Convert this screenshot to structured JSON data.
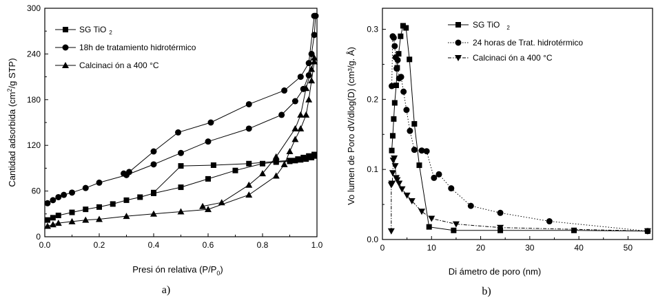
{
  "chart_data": [
    {
      "type": "line",
      "caption": "a)",
      "xlabel": "Presi ón relativa (P/P",
      "xlabel_sub": "0",
      "xlabel_close": ")",
      "ylabel": "Cantidad adsorbida (cm",
      "ylabel_sup": "2",
      "ylabel_close": "/g STP)",
      "xlim": [
        0,
        1.0
      ],
      "ylim": [
        0,
        300
      ],
      "xticks": [
        "0.0",
        "0.2",
        "0.4",
        "0.6",
        "0.8",
        "1.0"
      ],
      "yticks": [
        "0",
        "60",
        "120",
        "180",
        "240",
        "300"
      ],
      "grid": false,
      "legend_position": "top-left",
      "series": [
        {
          "name": "SG TiO",
          "name_sub": "2",
          "marker": "square",
          "x": [
            0.01,
            0.03,
            0.05,
            0.1,
            0.15,
            0.2,
            0.25,
            0.3,
            0.35,
            0.4,
            0.5,
            0.6,
            0.7,
            0.8,
            0.85,
            0.9,
            0.92,
            0.94,
            0.96,
            0.98,
            0.99,
            0.99,
            0.97,
            0.95,
            0.93,
            0.9,
            0.85,
            0.75,
            0.62,
            0.5,
            0.4
          ],
          "y": [
            22,
            25,
            28,
            32,
            36,
            39,
            43,
            48,
            52,
            57,
            65,
            76,
            87,
            96,
            98,
            99,
            100,
            101,
            102,
            104,
            106,
            108,
            106,
            104,
            102,
            100,
            99,
            96,
            94,
            93,
            58
          ]
        },
        {
          "name": "18h de tratamiento hidrotérmico",
          "marker": "circle",
          "x": [
            0.01,
            0.03,
            0.05,
            0.07,
            0.1,
            0.15,
            0.2,
            0.3,
            0.4,
            0.5,
            0.6,
            0.75,
            0.87,
            0.92,
            0.95,
            0.97,
            0.98,
            0.99,
            0.995,
            0.99,
            0.97,
            0.94,
            0.88,
            0.75,
            0.61,
            0.49,
            0.4,
            0.31,
            0.29
          ],
          "y": [
            44,
            48,
            52,
            55,
            58,
            64,
            71,
            81,
            95,
            110,
            125,
            142,
            160,
            178,
            194,
            212,
            240,
            265,
            290,
            290,
            228,
            210,
            192,
            174,
            150,
            137,
            112,
            85,
            83
          ]
        },
        {
          "name": "Calcinaci ón a 400 °C",
          "marker": "triangle",
          "x": [
            0.01,
            0.03,
            0.05,
            0.1,
            0.15,
            0.2,
            0.3,
            0.4,
            0.5,
            0.6,
            0.75,
            0.85,
            0.88,
            0.9,
            0.92,
            0.94,
            0.96,
            0.97,
            0.98,
            0.99,
            0.99,
            0.98,
            0.96,
            0.94,
            0.92,
            0.85,
            0.8,
            0.75,
            0.65,
            0.58
          ],
          "y": [
            14,
            16,
            18,
            20,
            22,
            23,
            27,
            30,
            33,
            36,
            55,
            80,
            95,
            112,
            128,
            142,
            160,
            180,
            205,
            230,
            235,
            220,
            195,
            160,
            142,
            105,
            83,
            68,
            45,
            40
          ]
        }
      ]
    },
    {
      "type": "line",
      "caption": "b)",
      "xlabel": "Di ámetro de poro (nm)",
      "ylabel": "Vo lumen de Poro dV/dlog(D) (cm³/g. Å)",
      "xlim": [
        0,
        55
      ],
      "ylim": [
        0,
        0.33
      ],
      "xticks": [
        "0",
        "10",
        "20",
        "30",
        "40",
        "50"
      ],
      "yticks": [
        "0.0",
        "0.1",
        "0.2",
        "0.3"
      ],
      "grid": false,
      "legend_position": "top-right",
      "series": [
        {
          "name": "SG TiO",
          "name_sub": "2",
          "marker": "square",
          "line": "solid",
          "x": [
            1.9,
            2.1,
            2.3,
            2.5,
            2.8,
            3.0,
            3.3,
            3.7,
            4.2,
            4.8,
            5.5,
            6.5,
            7.5,
            9.5,
            14.5,
            24,
            39,
            54
          ],
          "y": [
            0.127,
            0.148,
            0.172,
            0.195,
            0.22,
            0.245,
            0.265,
            0.29,
            0.305,
            0.302,
            0.257,
            0.165,
            0.106,
            0.018,
            0.013,
            0.013,
            0.013,
            0.012
          ]
        },
        {
          "name": "24 horas de Trat. hidrotérmico",
          "marker": "circle",
          "line": "dotted",
          "x": [
            1.9,
            2.1,
            2.3,
            2.5,
            2.7,
            2.9,
            3.1,
            3.4,
            3.8,
            4.3,
            4.9,
            5.6,
            6.5,
            8.0,
            9.0,
            10.5,
            11.5,
            14.0,
            18.0,
            24.0,
            34.0,
            54.0
          ],
          "y": [
            0.219,
            0.29,
            0.288,
            0.276,
            0.26,
            0.244,
            0.256,
            0.23,
            0.232,
            0.211,
            0.185,
            0.155,
            0.128,
            0.127,
            0.126,
            0.088,
            0.093,
            0.073,
            0.048,
            0.038,
            0.026,
            0.012
          ]
        },
        {
          "name": "Calcinaci ón a 400 °C",
          "marker": "triangle-down",
          "line": "dashdot",
          "x": [
            1.8,
            1.8,
            1.9,
            2.0,
            2.1,
            2.2,
            2.4,
            2.6,
            2.8,
            3.0,
            3.4,
            4.0,
            5.0,
            6.0,
            8.0,
            10.0,
            15.0,
            24.0,
            54.0
          ],
          "y": [
            0.012,
            0.078,
            0.08,
            0.08,
            0.095,
            0.113,
            0.116,
            0.105,
            0.088,
            0.085,
            0.08,
            0.072,
            0.063,
            0.055,
            0.04,
            0.03,
            0.022,
            0.017,
            0.012
          ]
        }
      ]
    }
  ]
}
